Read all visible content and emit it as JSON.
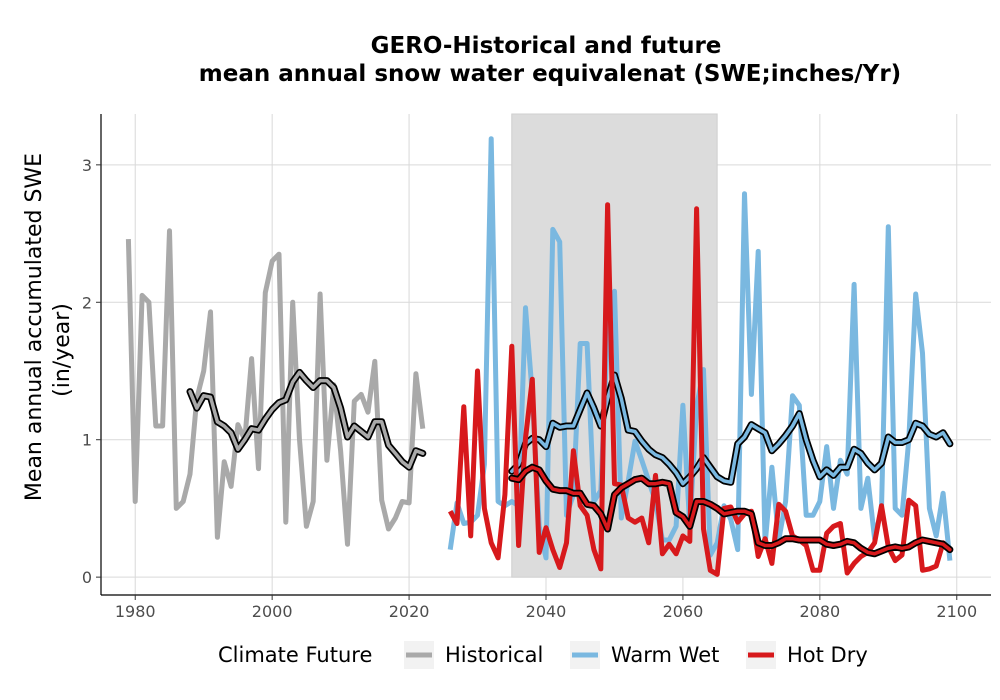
{
  "chart_data": {
    "type": "line",
    "title_lines": [
      "GERO-Historical and future",
      "mean annual snow water equivalenat (SWE;inches/Yr)"
    ],
    "ylabel_lines": [
      "Mean annual accumulated SWE",
      "(in/year)"
    ],
    "xlabel": "",
    "xlim": [
      1975,
      2105
    ],
    "ylim": [
      -0.13,
      3.37
    ],
    "x_ticks": [
      1980,
      2000,
      2020,
      2040,
      2060,
      2080,
      2100
    ],
    "x_tick_labels": [
      "1980",
      "2000",
      "2020",
      "2040",
      "2060",
      "2080",
      "2100"
    ],
    "y_ticks": [
      0,
      1,
      2,
      3
    ],
    "y_tick_labels": [
      "0",
      "1",
      "2",
      "3"
    ],
    "grid": true,
    "shaded_period": [
      2035,
      2065
    ],
    "legend": {
      "title": "Climate Future",
      "position": "bottom",
      "entries": [
        "Historical",
        "Warm Wet",
        "Hot Dry"
      ]
    },
    "series": [
      {
        "name": "Historical",
        "color": "#A9A9A9",
        "x": [
          1979,
          1980,
          1981,
          1982,
          1983,
          1984,
          1985,
          1986,
          1987,
          1988,
          1989,
          1990,
          1991,
          1992,
          1993,
          1994,
          1995,
          1996,
          1997,
          1998,
          1999,
          2000,
          2001,
          2002,
          2003,
          2004,
          2005,
          2006,
          2007,
          2008,
          2009,
          2010,
          2011,
          2012,
          2013,
          2014,
          2015,
          2016,
          2017,
          2018,
          2019,
          2020,
          2021,
          2022
        ],
        "values": [
          2.46,
          0.55,
          2.05,
          2.0,
          1.1,
          1.1,
          2.52,
          0.5,
          0.55,
          0.75,
          1.3,
          1.5,
          1.93,
          0.29,
          0.84,
          0.66,
          1.11,
          1.0,
          1.59,
          0.79,
          2.07,
          2.3,
          2.35,
          0.4,
          2.0,
          1.0,
          0.37,
          0.55,
          2.06,
          0.85,
          1.4,
          0.92,
          0.24,
          1.28,
          1.33,
          1.2,
          1.57,
          0.56,
          0.35,
          0.43,
          0.55,
          0.54,
          1.48,
          1.08
        ]
      },
      {
        "name": "Historical smooth",
        "color": "#A9A9A9",
        "smooth": true,
        "x": [
          1988,
          1989,
          1990,
          1991,
          1992,
          1993,
          1994,
          1995,
          1996,
          1997,
          1998,
          1999,
          2000,
          2001,
          2002,
          2003,
          2004,
          2005,
          2006,
          2007,
          2008,
          2009,
          2010,
          2011,
          2012,
          2013,
          2014,
          2015,
          2016,
          2017,
          2018,
          2019,
          2020,
          2021,
          2022
        ],
        "values": [
          1.35,
          1.23,
          1.32,
          1.31,
          1.13,
          1.1,
          1.05,
          0.93,
          1.0,
          1.08,
          1.07,
          1.15,
          1.22,
          1.27,
          1.29,
          1.42,
          1.49,
          1.43,
          1.38,
          1.43,
          1.43,
          1.38,
          1.23,
          1.02,
          1.1,
          1.06,
          1.02,
          1.13,
          1.13,
          0.96,
          0.9,
          0.84,
          0.8,
          0.92,
          0.9
        ]
      },
      {
        "name": "Warm Wet",
        "color": "#7AB8E0",
        "x": [
          2026,
          2027,
          2028,
          2029,
          2030,
          2031,
          2032,
          2033,
          2034,
          2035,
          2036,
          2037,
          2038,
          2039,
          2040,
          2041,
          2042,
          2043,
          2044,
          2045,
          2046,
          2047,
          2048,
          2049,
          2050,
          2051,
          2052,
          2053,
          2054,
          2055,
          2056,
          2057,
          2058,
          2059,
          2060,
          2061,
          2062,
          2063,
          2064,
          2065,
          2066,
          2067,
          2068,
          2069,
          2070,
          2071,
          2072,
          2073,
          2074,
          2075,
          2076,
          2077,
          2078,
          2079,
          2080,
          2081,
          2082,
          2083,
          2084,
          2085,
          2086,
          2087,
          2088,
          2089,
          2090,
          2091,
          2092,
          2093,
          2094,
          2095,
          2096,
          2097,
          2098,
          2099
        ],
        "values": [
          0.2,
          0.54,
          0.39,
          0.4,
          0.45,
          0.82,
          3.19,
          0.55,
          0.52,
          0.55,
          0.52,
          1.96,
          1.33,
          0.37,
          0.14,
          2.53,
          2.44,
          0.45,
          0.6,
          1.7,
          1.7,
          0.55,
          0.63,
          1.8,
          2.08,
          0.43,
          0.7,
          0.99,
          0.85,
          0.7,
          0.55,
          0.27,
          0.27,
          0.37,
          1.25,
          0.37,
          1.24,
          1.51,
          0.16,
          0.25,
          0.52,
          0.42,
          0.2,
          2.79,
          1.33,
          2.37,
          0.24,
          0.8,
          0.27,
          0.55,
          1.32,
          1.25,
          0.45,
          0.45,
          0.55,
          0.95,
          0.5,
          0.85,
          0.75,
          2.13,
          0.5,
          0.72,
          0.28,
          0.5,
          2.55,
          0.5,
          0.45,
          1.0,
          2.06,
          1.63,
          0.5,
          0.3,
          0.61,
          0.12
        ]
      },
      {
        "name": "Warm Wet smooth",
        "color": "#7AB8E0",
        "smooth": true,
        "x": [
          2035,
          2036,
          2037,
          2038,
          2039,
          2040,
          2041,
          2042,
          2043,
          2044,
          2045,
          2046,
          2047,
          2048,
          2049,
          2050,
          2051,
          2052,
          2053,
          2054,
          2055,
          2056,
          2057,
          2058,
          2059,
          2060,
          2061,
          2062,
          2063,
          2064,
          2065,
          2066,
          2067,
          2068,
          2069,
          2070,
          2071,
          2072,
          2073,
          2074,
          2075,
          2076,
          2077,
          2078,
          2079,
          2080,
          2081,
          2082,
          2083,
          2084,
          2085,
          2086,
          2087,
          2088,
          2089,
          2090,
          2091,
          2092,
          2093,
          2094,
          2095,
          2096,
          2097,
          2098,
          2099
        ],
        "values": [
          0.77,
          0.82,
          0.97,
          1.01,
          1.0,
          0.95,
          1.12,
          1.09,
          1.1,
          1.1,
          1.22,
          1.34,
          1.23,
          1.1,
          1.3,
          1.47,
          1.3,
          1.07,
          1.06,
          0.99,
          0.93,
          0.89,
          0.87,
          0.82,
          0.76,
          0.68,
          0.73,
          0.79,
          0.87,
          0.8,
          0.73,
          0.7,
          0.69,
          0.97,
          1.02,
          1.11,
          1.08,
          1.05,
          0.92,
          0.97,
          1.03,
          1.1,
          1.19,
          1.0,
          0.85,
          0.73,
          0.78,
          0.74,
          0.8,
          0.8,
          0.93,
          0.9,
          0.83,
          0.78,
          0.83,
          1.02,
          0.98,
          0.98,
          1.0,
          1.12,
          1.1,
          1.04,
          1.02,
          1.05,
          0.97
        ]
      },
      {
        "name": "Hot Dry",
        "color": "#D7191C",
        "x": [
          2026,
          2027,
          2028,
          2029,
          2030,
          2031,
          2032,
          2033,
          2034,
          2035,
          2036,
          2037,
          2038,
          2039,
          2040,
          2041,
          2042,
          2043,
          2044,
          2045,
          2046,
          2047,
          2048,
          2049,
          2050,
          2051,
          2052,
          2053,
          2054,
          2055,
          2056,
          2057,
          2058,
          2059,
          2060,
          2061,
          2062,
          2063,
          2064,
          2065,
          2066,
          2067,
          2068,
          2069,
          2070,
          2071,
          2072,
          2073,
          2074,
          2075,
          2076,
          2077,
          2078,
          2079,
          2080,
          2081,
          2082,
          2083,
          2084,
          2085,
          2086,
          2087,
          2088,
          2089,
          2090,
          2091,
          2092,
          2093,
          2094,
          2095,
          2096,
          2097,
          2098,
          2099
        ],
        "values": [
          0.48,
          0.39,
          1.24,
          0.3,
          1.5,
          0.5,
          0.25,
          0.14,
          0.6,
          1.68,
          0.23,
          1.01,
          1.44,
          0.18,
          0.36,
          0.2,
          0.07,
          0.25,
          0.92,
          0.52,
          0.45,
          0.2,
          0.06,
          2.71,
          0.68,
          0.67,
          0.43,
          0.4,
          0.43,
          0.25,
          0.74,
          0.17,
          0.24,
          0.17,
          0.3,
          0.26,
          2.68,
          0.35,
          0.05,
          0.02,
          0.5,
          0.51,
          0.4,
          0.46,
          0.48,
          0.15,
          0.28,
          0.1,
          0.53,
          0.48,
          0.3,
          0.27,
          0.23,
          0.05,
          0.05,
          0.32,
          0.37,
          0.39,
          0.03,
          0.1,
          0.15,
          0.18,
          0.25,
          0.52,
          0.22,
          0.12,
          0.16,
          0.56,
          0.52,
          0.05,
          0.06,
          0.08,
          0.25,
          0.2
        ]
      },
      {
        "name": "Hot Dry smooth",
        "color": "#D7191C",
        "smooth": true,
        "x": [
          2035,
          2036,
          2037,
          2038,
          2039,
          2040,
          2041,
          2042,
          2043,
          2044,
          2045,
          2046,
          2047,
          2048,
          2049,
          2050,
          2051,
          2052,
          2053,
          2054,
          2055,
          2056,
          2057,
          2058,
          2059,
          2060,
          2061,
          2062,
          2063,
          2064,
          2065,
          2066,
          2067,
          2068,
          2069,
          2070,
          2071,
          2072,
          2073,
          2074,
          2075,
          2076,
          2077,
          2078,
          2079,
          2080,
          2081,
          2082,
          2083,
          2084,
          2085,
          2086,
          2087,
          2088,
          2089,
          2090,
          2091,
          2092,
          2093,
          2094,
          2095,
          2096,
          2097,
          2098,
          2099
        ],
        "values": [
          0.72,
          0.71,
          0.77,
          0.8,
          0.78,
          0.7,
          0.64,
          0.63,
          0.63,
          0.61,
          0.61,
          0.53,
          0.52,
          0.46,
          0.35,
          0.6,
          0.65,
          0.68,
          0.71,
          0.72,
          0.68,
          0.68,
          0.69,
          0.68,
          0.47,
          0.44,
          0.37,
          0.55,
          0.55,
          0.53,
          0.5,
          0.46,
          0.47,
          0.48,
          0.48,
          0.46,
          0.25,
          0.23,
          0.23,
          0.25,
          0.28,
          0.28,
          0.27,
          0.27,
          0.27,
          0.27,
          0.24,
          0.23,
          0.24,
          0.26,
          0.25,
          0.21,
          0.18,
          0.17,
          0.19,
          0.21,
          0.22,
          0.21,
          0.22,
          0.25,
          0.27,
          0.26,
          0.25,
          0.24,
          0.2
        ]
      }
    ]
  }
}
